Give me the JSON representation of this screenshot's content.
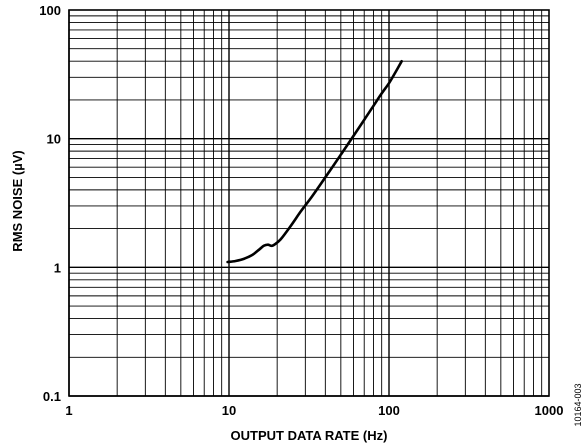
{
  "chart_data": {
    "type": "line",
    "title": "",
    "xlabel": "OUTPUT DATA RATE (Hz)",
    "ylabel": "RMS NOISE (µV)",
    "x_scale": "log",
    "y_scale": "log",
    "xlim": [
      1,
      1000
    ],
    "ylim": [
      0.1,
      100
    ],
    "x_ticks": [
      1,
      10,
      100,
      1000
    ],
    "x_tick_labels": [
      "1",
      "10",
      "100",
      "1000"
    ],
    "y_ticks": [
      0.1,
      1,
      10,
      100
    ],
    "y_tick_labels": [
      "0.1",
      "1",
      "10",
      "100"
    ],
    "grid": true,
    "legend": "none",
    "line_color": "#000000",
    "series": [
      {
        "x": [
          9.8,
          11,
          12.5,
          14,
          15.5,
          16.5,
          17.5,
          18.5,
          19.5,
          21,
          24,
          28,
          33,
          40,
          50,
          60,
          70,
          80,
          90,
          100,
          110,
          120
        ],
        "y": [
          1.1,
          1.12,
          1.17,
          1.25,
          1.38,
          1.47,
          1.5,
          1.47,
          1.52,
          1.65,
          2.05,
          2.7,
          3.55,
          5.0,
          7.5,
          10.5,
          14.0,
          18.0,
          22.5,
          27.0,
          33.0,
          40.0
        ]
      }
    ]
  },
  "figure_id": "10164-003"
}
